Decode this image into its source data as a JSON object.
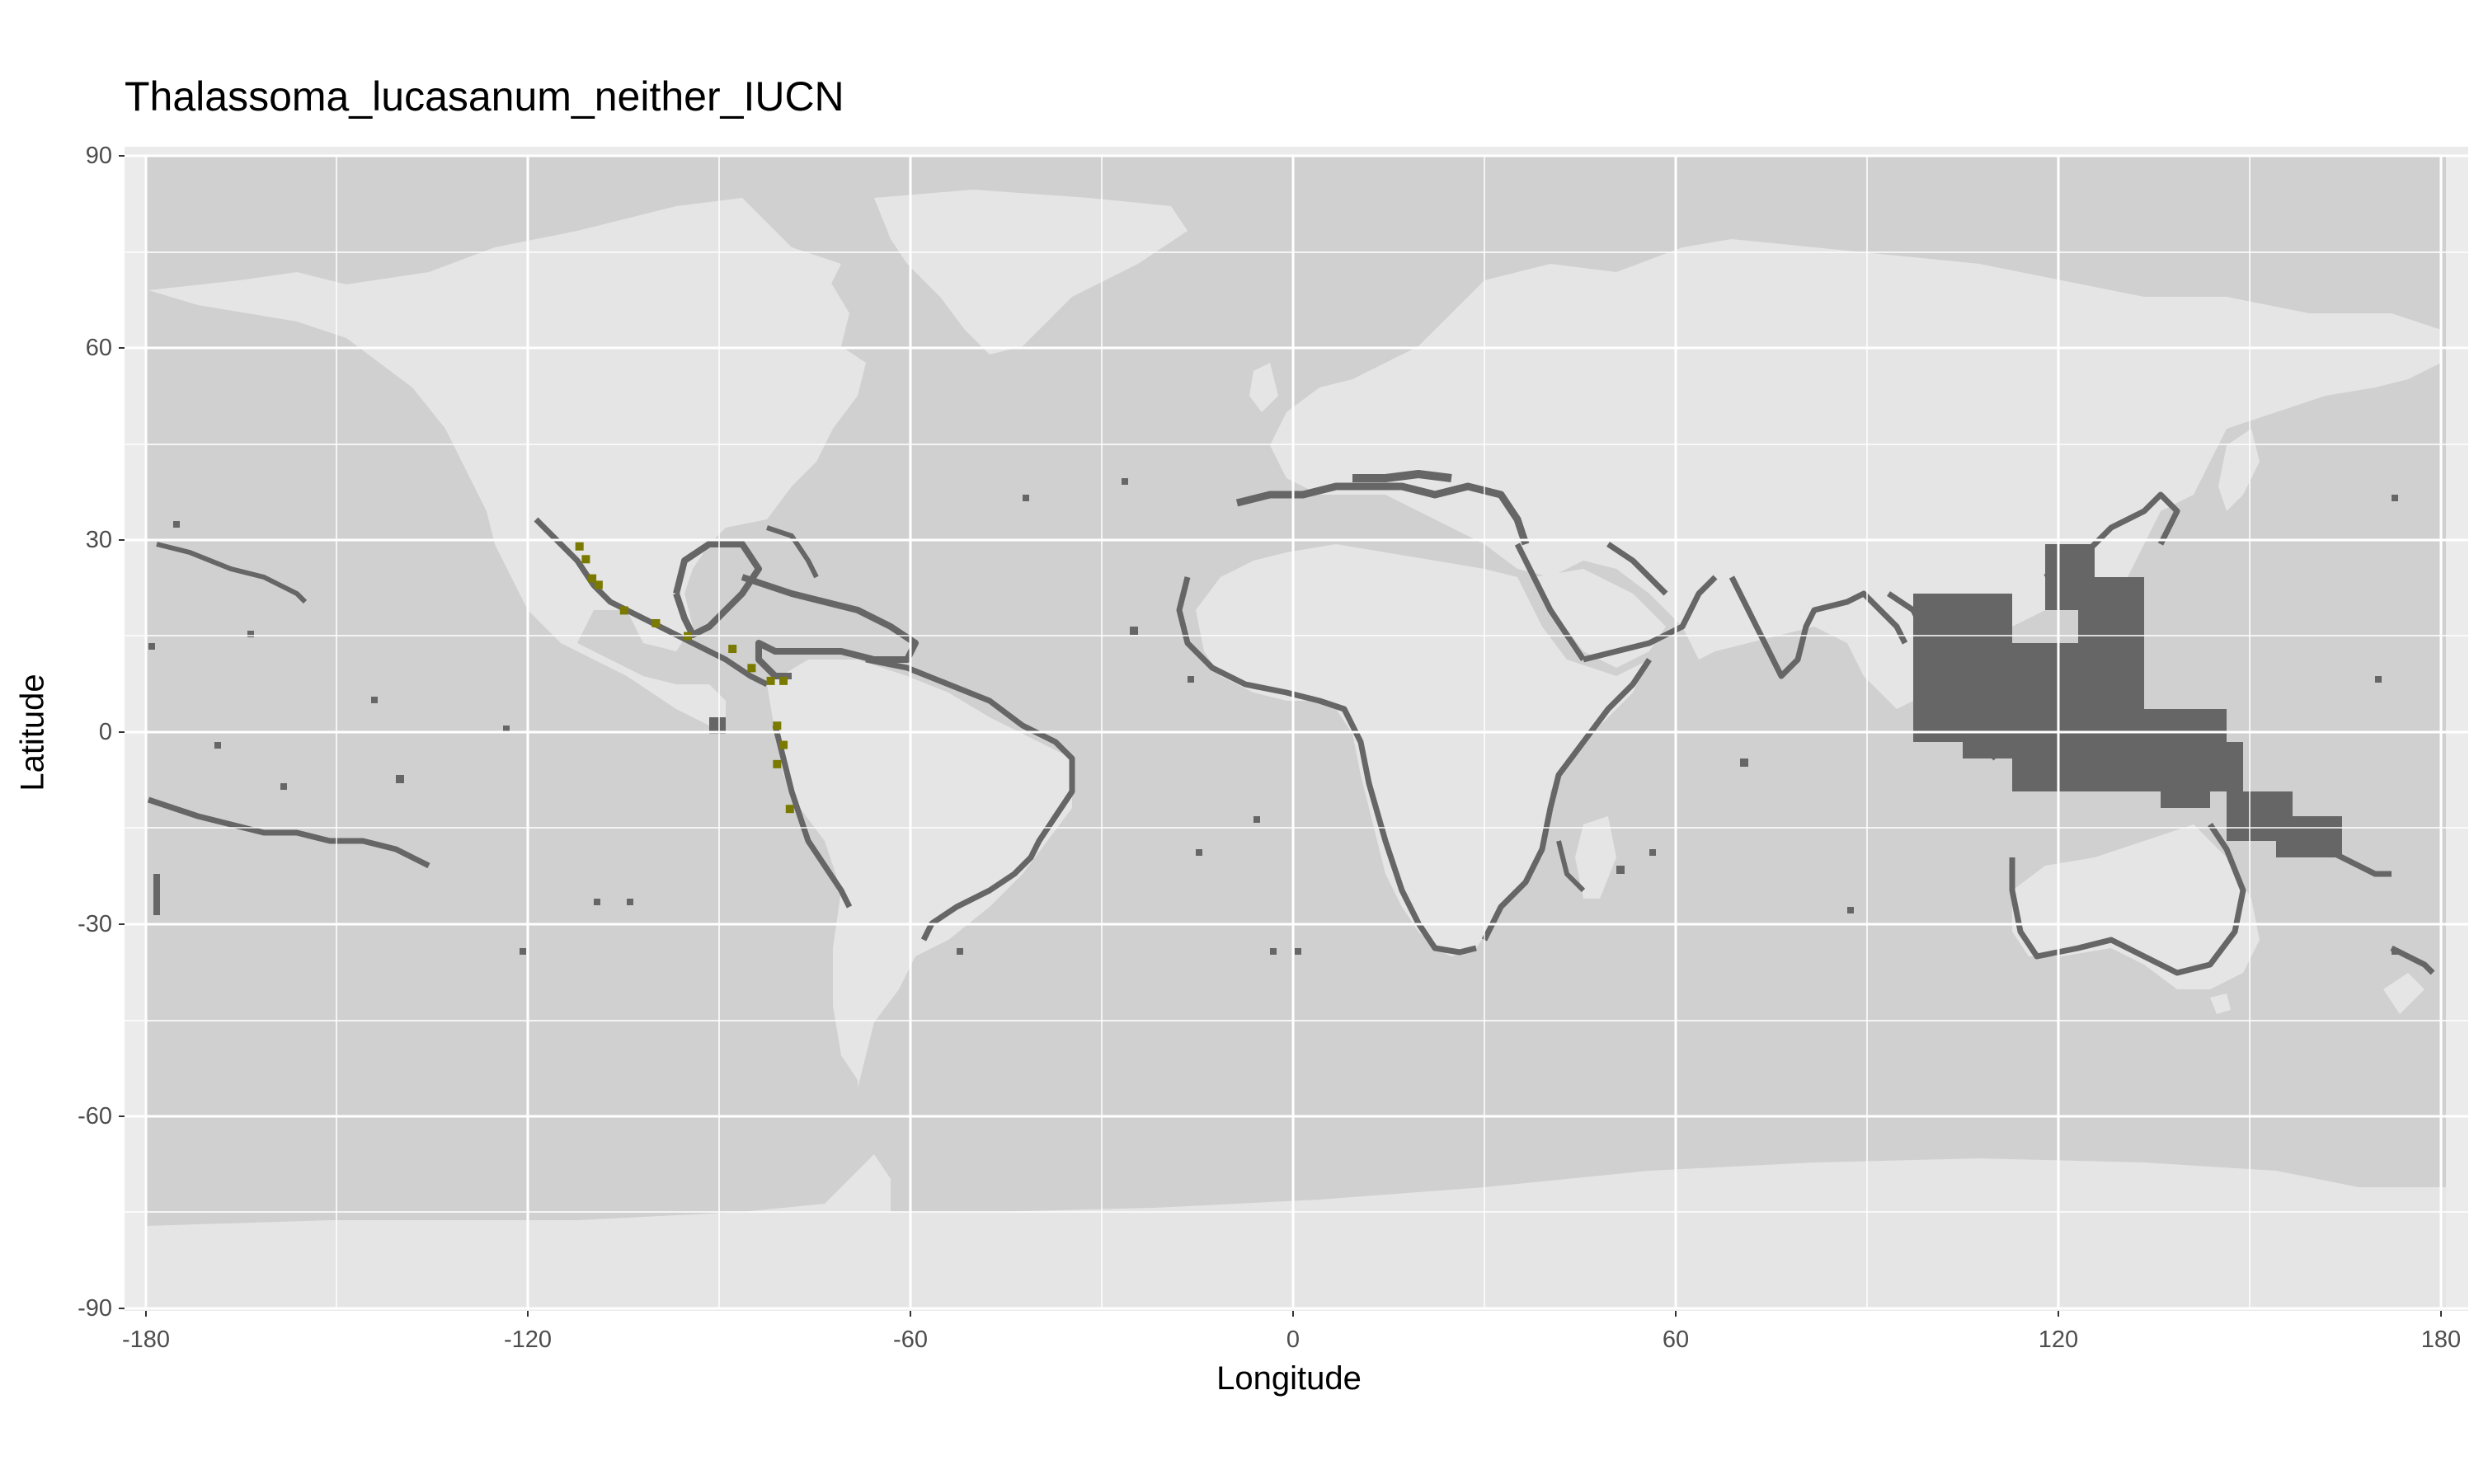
{
  "chart_data": {
    "type": "map",
    "title": "Thalassoma_lucasanum_neither_IUCN",
    "xlabel": "Longitude",
    "ylabel": "Latitude",
    "xlim": [
      -180,
      180
    ],
    "ylim": [
      -90,
      90
    ],
    "x_ticks": [
      "-180",
      "-120",
      "-60",
      "0",
      "60",
      "120",
      "180"
    ],
    "y_ticks": [
      "90",
      "60",
      "30",
      "0",
      "-30",
      "-60",
      "-90"
    ],
    "grid": true,
    "colors": {
      "panel_background": "#ebebeb",
      "ocean": "#d0d0d0",
      "land": "#e5e5e5",
      "coastal_cells": "#666666",
      "species_range": "#7a7a00",
      "grid_major": "#ffffff"
    },
    "layers": [
      {
        "name": "coastal_cells",
        "description_regions": [
          "Caribbean",
          "Gulf of Mexico",
          "Mediterranean",
          "Red Sea",
          "Indo-Pacific",
          "Pacific islands",
          "Africa coast",
          "South America coast",
          "Australia coast"
        ]
      },
      {
        "name": "species_range",
        "points": [
          [
            -112,
            29
          ],
          [
            -111,
            27
          ],
          [
            -110,
            24
          ],
          [
            -109,
            23
          ],
          [
            -105,
            19
          ],
          [
            -100,
            17
          ],
          [
            -95,
            15
          ],
          [
            -88,
            13
          ],
          [
            -85,
            10
          ],
          [
            -82,
            8
          ],
          [
            -80,
            8
          ],
          [
            -81,
            1
          ],
          [
            -80,
            -2
          ],
          [
            -81,
            -5
          ],
          [
            -79,
            -12
          ]
        ]
      }
    ]
  }
}
